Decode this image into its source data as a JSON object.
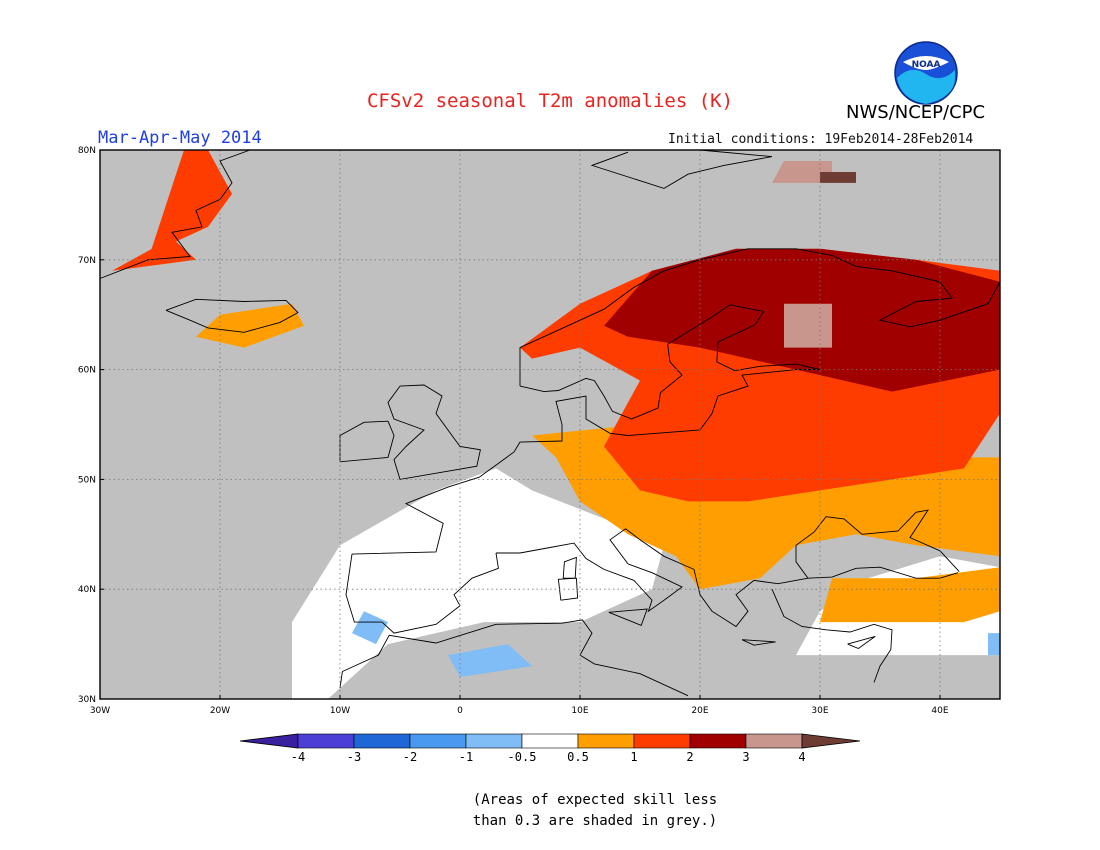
{
  "title": "CFSv2 seasonal T2m anomalies (K)",
  "period": "Mar-Apr-May 2014",
  "initial_conditions": "Initial conditions: 19Feb2014-28Feb2014",
  "agency": "NWS/NCEP/CPC",
  "logo_text": "NOAA",
  "note_line1": "(Areas of expected skill less",
  "note_line2": "than 0.3 are shaded in grey.)",
  "colors": {
    "skill_grey": "#c0c0c0",
    "neutral": "#ffffff",
    "cold_4": "#3a1f9e",
    "cold_3": "#4b3fd6",
    "cold_2": "#1f66d6",
    "cold_1": "#4a99f0",
    "cold_05": "#80bdf6",
    "warm_05": "#ff9e00",
    "warm_1": "#ff3c00",
    "warm_2": "#a00000",
    "warm_3": "#c8968c",
    "warm_4": "#6e3c32",
    "title_red": "#e8231f",
    "period_blue": "#1f3fe6"
  },
  "map": {
    "lon_range": [
      -30,
      45
    ],
    "lat_range": [
      30,
      80
    ],
    "lat_labels": [
      "30N",
      "40N",
      "50N",
      "60N",
      "70N",
      "80N"
    ],
    "lon_labels": [
      "30W",
      "20W",
      "10W",
      "0",
      "10E",
      "20E",
      "30E",
      "40E"
    ]
  },
  "colorbar": {
    "labels": [
      "-4",
      "-3",
      "-2",
      "-1",
      "-0.5",
      "0.5",
      "1",
      "2",
      "3",
      "4"
    ]
  }
}
